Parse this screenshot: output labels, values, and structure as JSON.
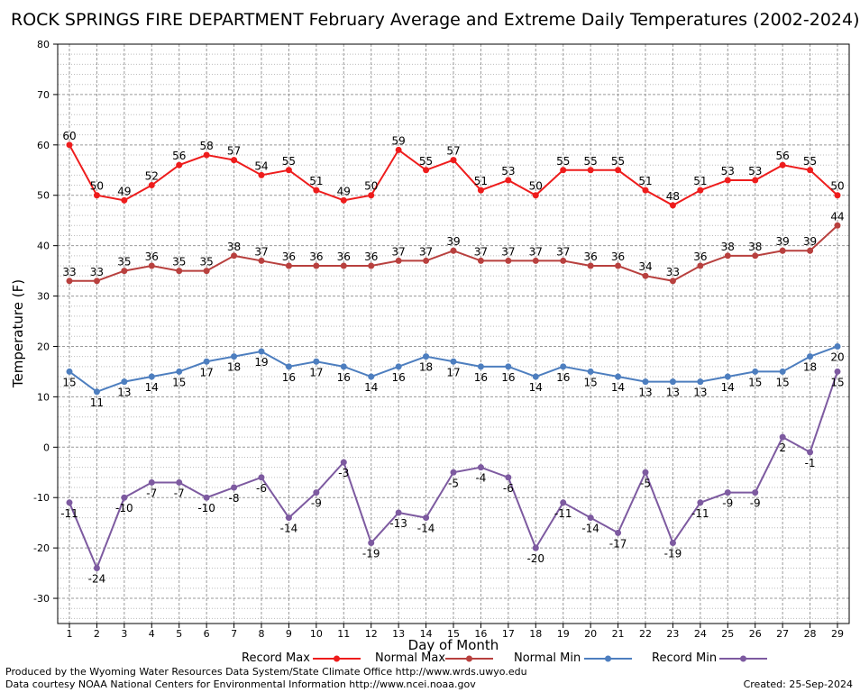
{
  "chart_data": {
    "type": "line",
    "title": "ROCK SPRINGS FIRE DEPARTMENT February Average and Extreme Daily Temperatures (2002-2024)",
    "xlabel": "Day of Month",
    "ylabel": "Temperature (F)",
    "ylim": [
      -35,
      80
    ],
    "yticks": [
      -30,
      -20,
      -10,
      0,
      10,
      20,
      30,
      40,
      50,
      60,
      70,
      80
    ],
    "x": [
      1,
      2,
      3,
      4,
      5,
      6,
      7,
      8,
      9,
      10,
      11,
      12,
      13,
      14,
      15,
      16,
      17,
      18,
      19,
      20,
      21,
      22,
      23,
      24,
      25,
      26,
      27,
      28,
      29
    ],
    "grid": true,
    "legend_position": "bottom",
    "series": [
      {
        "name": "Record Max",
        "color": "#ee1c1c",
        "values": [
          60,
          50,
          49,
          52,
          56,
          58,
          57,
          54,
          55,
          51,
          49,
          50,
          59,
          55,
          57,
          51,
          53,
          50,
          55,
          55,
          55,
          51,
          48,
          51,
          53,
          53,
          56,
          55,
          50
        ]
      },
      {
        "name": "Normal Max",
        "color": "#b8403e",
        "values": [
          33,
          33,
          35,
          36,
          35,
          35,
          38,
          37,
          36,
          36,
          36,
          36,
          37,
          37,
          39,
          37,
          37,
          37,
          37,
          36,
          36,
          34,
          33,
          36,
          38,
          38,
          39,
          39,
          44
        ]
      },
      {
        "name": "Normal Min",
        "color": "#4d7ebf",
        "values": [
          15,
          11,
          13,
          14,
          15,
          17,
          18,
          19,
          16,
          17,
          16,
          14,
          16,
          18,
          17,
          16,
          16,
          14,
          16,
          15,
          14,
          13,
          13,
          13,
          14,
          15,
          15,
          18,
          20
        ]
      },
      {
        "name": "Record Min",
        "color": "#7d5aa0",
        "values": [
          -11,
          -24,
          -10,
          -7,
          -7,
          -10,
          -8,
          -6,
          -14,
          -9,
          -3,
          -19,
          -13,
          -14,
          -5,
          -4,
          -6,
          -20,
          -11,
          -14,
          -17,
          -5,
          -19,
          -11,
          -9,
          -9,
          2,
          -1,
          15
        ]
      }
    ]
  },
  "footer": {
    "line1": "Produced by the Wyoming Water Resources Data System/State Climate Office http://www.wrds.uwyo.edu",
    "line2": "Data courtesy NOAA National Centers for Environmental Information http://www.ncei.noaa.gov",
    "created": "Created:  25-Sep-2024"
  }
}
